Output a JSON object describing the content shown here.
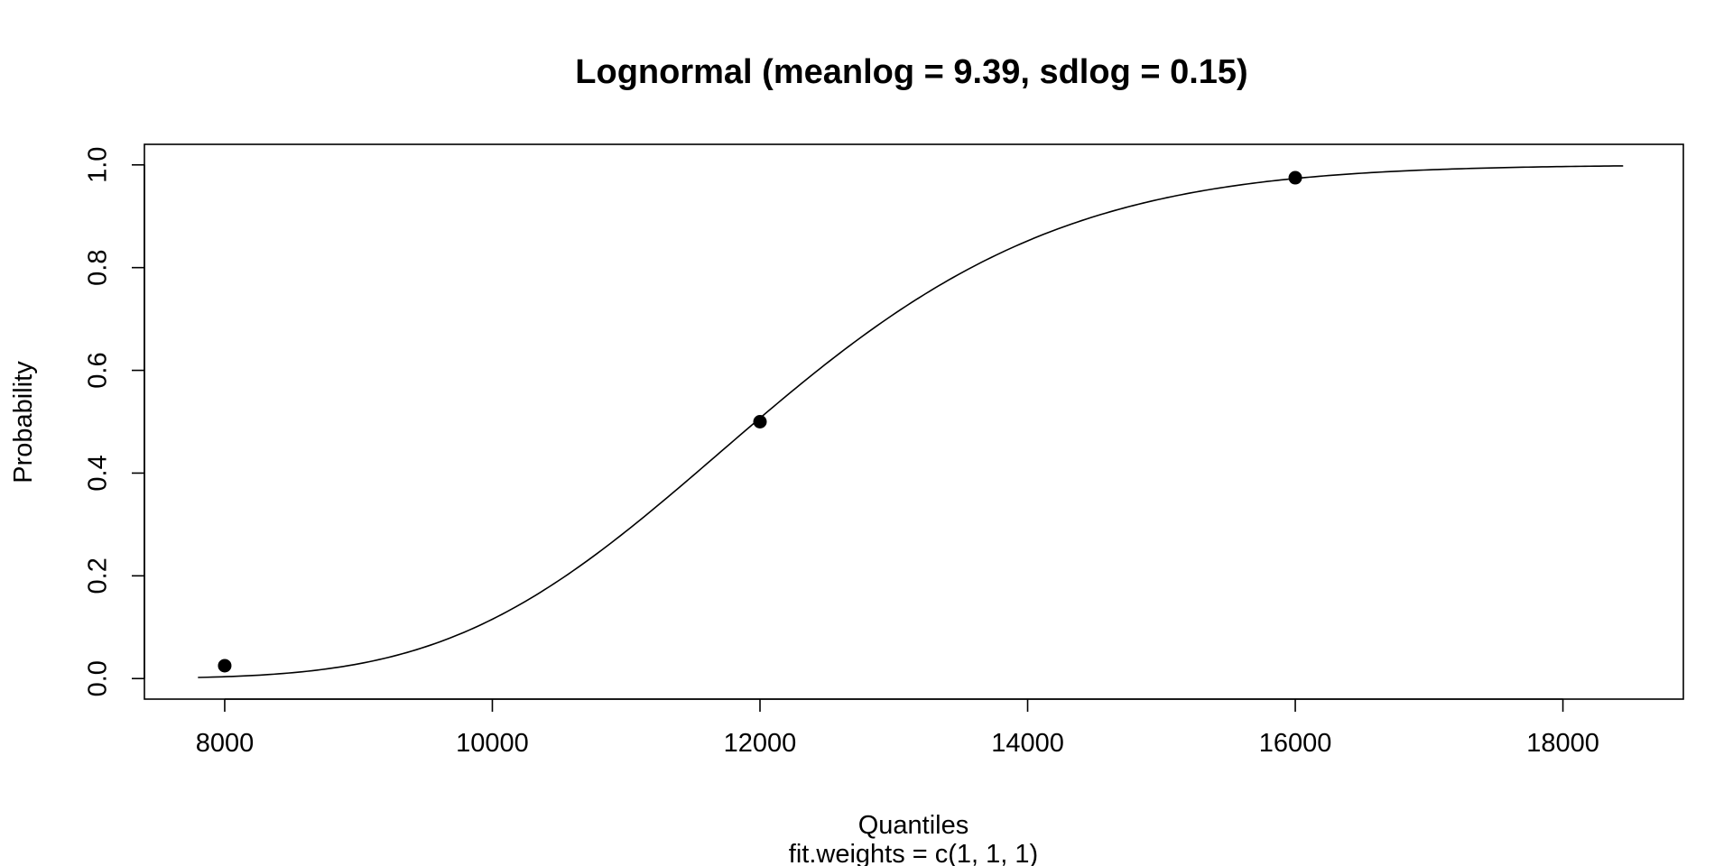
{
  "chart_data": {
    "type": "line",
    "title": "Lognormal (meanlog =  9.39, sdlog =  0.15)",
    "xlabel": "Quantiles",
    "sublabel": "fit.weights = c(1, 1, 1)",
    "ylabel": "Probability",
    "xlim": [
      7400,
      18900
    ],
    "ylim": [
      -0.04,
      1.04
    ],
    "x_ticks": [
      8000,
      10000,
      12000,
      14000,
      16000,
      18000
    ],
    "y_ticks": [
      0.0,
      0.2,
      0.4,
      0.6,
      0.8,
      1.0
    ],
    "y_tick_labels": [
      "0.0",
      "0.2",
      "0.4",
      "0.6",
      "0.8",
      "1.0"
    ],
    "grid": false,
    "series": [
      {
        "kind": "cdf-curve",
        "distribution": "lognormal",
        "meanlog": 9.39,
        "sdlog": 0.15,
        "x_range": [
          7800,
          18450
        ]
      },
      {
        "kind": "points",
        "x": [
          8000,
          12000,
          16000
        ],
        "y": [
          0.025,
          0.5,
          0.975
        ]
      }
    ]
  }
}
